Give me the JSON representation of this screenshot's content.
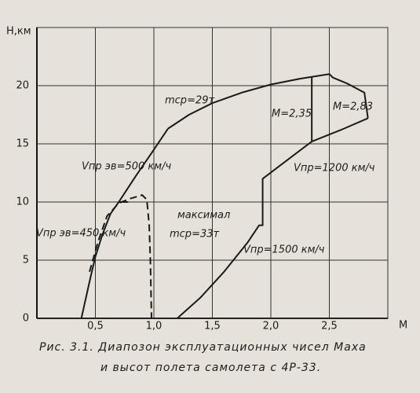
{
  "chart_data": {
    "type": "line",
    "x_label": "M",
    "y_label": "H,км",
    "xlim": [
      0,
      3
    ],
    "ylim": [
      0,
      25
    ],
    "xticks": [
      {
        "value": 0.5,
        "label": "0,5"
      },
      {
        "value": 1.0,
        "label": "1,0"
      },
      {
        "value": 1.5,
        "label": "1,5"
      },
      {
        "value": 2.0,
        "label": "2,0"
      },
      {
        "value": 2.5,
        "label": "2,5"
      }
    ],
    "yticks": [
      0,
      5,
      10,
      15,
      20
    ],
    "grid": true,
    "series": [
      {
        "color": "#1a1a1a",
        "dash": false,
        "x": [
          0.38,
          0.42,
          0.46,
          0.5,
          0.56,
          0.63,
          0.7,
          0.85,
          1.0,
          1.12
        ],
        "values": [
          0,
          1.8,
          3.6,
          5.3,
          7.2,
          9,
          10,
          12.3,
          14.5,
          16.3
        ]
      },
      {
        "color": "#1a1a1a",
        "dash": false,
        "x": [
          0.7,
          0.78
        ],
        "values": [
          10,
          10
        ]
      },
      {
        "color": "#1a1a1a",
        "dash": false,
        "x": [
          1.12,
          1.3,
          1.5,
          1.75,
          2.0,
          2.25,
          2.5,
          2.53,
          2.65,
          2.8,
          2.83
        ],
        "values": [
          16.3,
          17.5,
          18.5,
          19.4,
          20.1,
          20.6,
          21,
          20.7,
          20.2,
          19.4,
          17.2
        ]
      },
      {
        "color": "#1a1a1a",
        "dash": false,
        "x": [
          2.83,
          2.6,
          2.35,
          2.1,
          1.93,
          1.93,
          1.9,
          1.8,
          1.6,
          1.4,
          1.2
        ],
        "values": [
          17.2,
          16.2,
          15.2,
          13.3,
          12,
          8,
          8,
          6.5,
          4,
          1.8,
          0
        ]
      },
      {
        "color": "#1a1a1a",
        "dash": false,
        "x": [
          2.35,
          2.35
        ],
        "values": [
          15.2,
          20.7
        ]
      },
      {
        "color": "#1a1a1a",
        "dash": true,
        "x": [
          0.45,
          0.52,
          0.6,
          0.7,
          0.8,
          0.9,
          0.94,
          0.96,
          0.97,
          0.98
        ],
        "values": [
          4,
          6.5,
          8.8,
          9.9,
          10.3,
          10.6,
          10.2,
          8,
          5,
          0
        ]
      }
    ],
    "annotations": [
      "mср=29т",
      "M=2,35",
      "M=2,83",
      "Vпр эв=500 км/ч",
      "Vпр=1200 км/ч",
      "Vпр эв=450 км/ч",
      "максимал",
      "mср=33т",
      "Vпр=1500 км/ч"
    ],
    "caption": [
      "Рис. 3.1.   Диапозон эксплуатационных чисел Маха",
      "и высот полета самолета с 4Р-33."
    ]
  }
}
